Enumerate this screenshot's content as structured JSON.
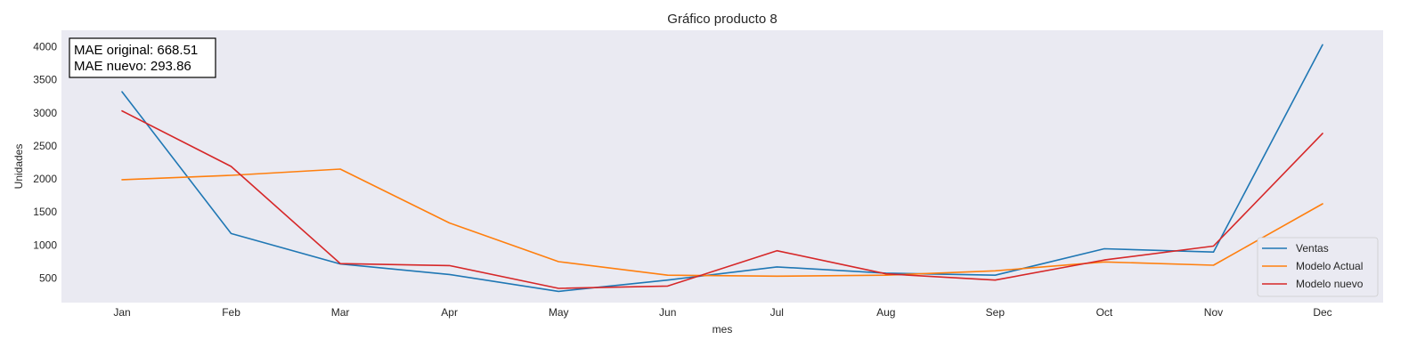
{
  "chart_data": {
    "type": "line",
    "title": "Gráfico producto 8",
    "xlabel": "mes",
    "ylabel": "Unidades",
    "categories": [
      "Jan",
      "Feb",
      "Mar",
      "Apr",
      "May",
      "Jun",
      "Jul",
      "Aug",
      "Sep",
      "Oct",
      "Nov",
      "Dec"
    ],
    "yticks": [
      500,
      1000,
      1500,
      2000,
      2500,
      3000,
      3500,
      4000
    ],
    "ylim": [
      130,
      4250
    ],
    "grid": false,
    "legend_position": "lower-right",
    "series": [
      {
        "name": "Ventas",
        "color": "#1f77b4",
        "values": [
          3320,
          1175,
          715,
          555,
          300,
          470,
          670,
          575,
          545,
          945,
          895,
          4030
        ]
      },
      {
        "name": "Modelo Actual",
        "color": "#ff7f0e",
        "values": [
          1990,
          2055,
          2150,
          1335,
          750,
          545,
          530,
          545,
          610,
          745,
          695,
          1625
        ]
      },
      {
        "name": "Modelo nuevo",
        "color": "#d62728",
        "values": [
          3030,
          2190,
          720,
          690,
          345,
          380,
          915,
          565,
          470,
          775,
          985,
          2690
        ]
      }
    ],
    "annotation": {
      "line1": "MAE original: 668.51",
      "line2": "MAE nuevo: 293.86"
    }
  }
}
